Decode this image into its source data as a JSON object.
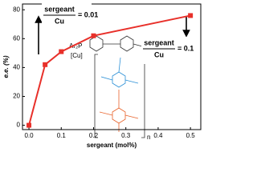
{
  "chart_data": {
    "type": "line",
    "x": [
      0,
      0.05,
      0.1,
      0.2,
      0.5
    ],
    "series": [
      {
        "name": "e.e.",
        "color": "#e8302a",
        "values": [
          0,
          42,
          51,
          62,
          76
        ]
      }
    ],
    "xlim": [
      -0.02,
      0.532
    ],
    "ylim": [
      -3,
      84
    ],
    "xticks": [
      {
        "value": 0,
        "label": "0.0"
      },
      0.1,
      0.2,
      0.3,
      0.4,
      0.5
    ],
    "yticks": [
      0,
      20,
      40,
      60,
      80
    ],
    "xlabel": "sergeant (mol%)",
    "ylabel": "e.e. (%)",
    "annotations": [
      {
        "numerator": "sergeant",
        "denominator": "Cu",
        "value_text": "= 0.01"
      },
      {
        "numerator": "sergeant",
        "denominator": "Cu",
        "value_text": "= 0.1"
      }
    ],
    "structure_labels": [
      "Ar₂P",
      "[Cu]",
      "n"
    ]
  }
}
